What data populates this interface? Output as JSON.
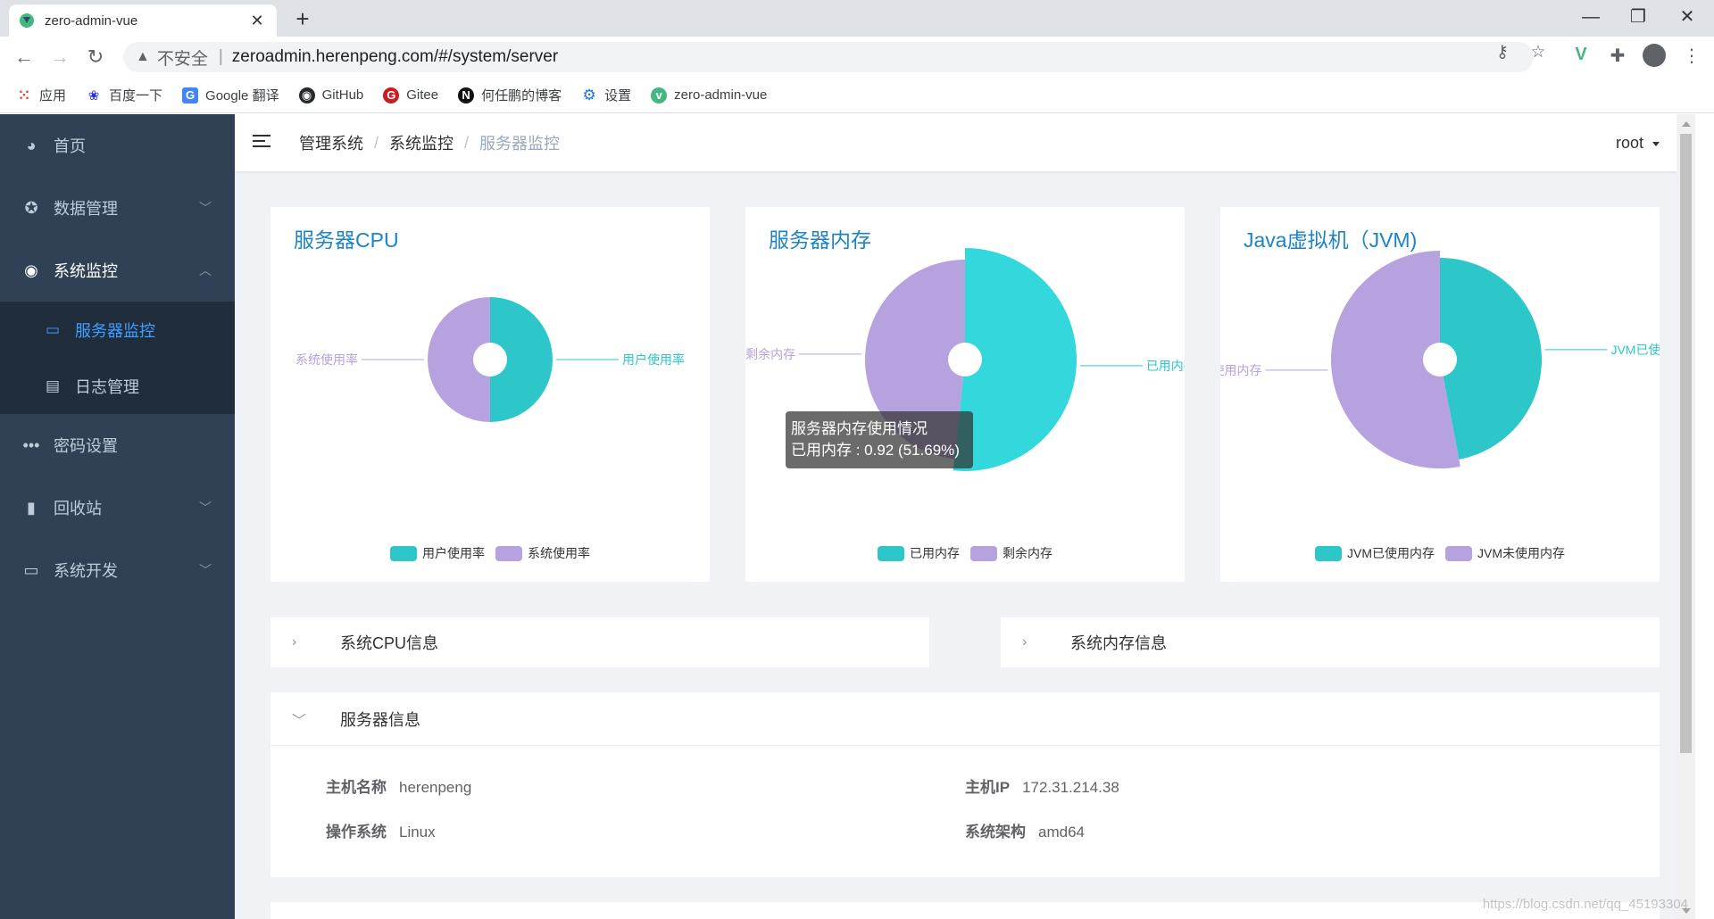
{
  "browser": {
    "tab_title": "zero-admin-vue",
    "tab_close": "✕",
    "new_tab": "+",
    "insecure_label": "不安全",
    "separator": "|",
    "url": "zeroadmin.herenpeng.com/#/system/server",
    "bookmarks": [
      {
        "label": "应用",
        "icon": "apps-grid-icon"
      },
      {
        "label": "百度一下",
        "icon": "baidu-paw-icon"
      },
      {
        "label": "Google 翻译",
        "icon": "google-translate-icon"
      },
      {
        "label": "GitHub",
        "icon": "github-icon"
      },
      {
        "label": "Gitee",
        "icon": "gitee-icon"
      },
      {
        "label": "何任鹏的博客",
        "icon": "notion-icon"
      },
      {
        "label": "设置",
        "icon": "gear-icon"
      },
      {
        "label": "zero-admin-vue",
        "icon": "vue-icon"
      }
    ]
  },
  "sidebar": {
    "items": [
      {
        "label": "首页",
        "icon": "dashboard-icon"
      },
      {
        "label": "数据管理",
        "icon": "data-icon",
        "expandable": true
      },
      {
        "label": "系统监控",
        "icon": "eye-icon",
        "expandable": true,
        "open": true,
        "children": [
          {
            "label": "服务器监控",
            "icon": "monitor-icon",
            "active": true
          },
          {
            "label": "日志管理",
            "icon": "document-icon"
          }
        ]
      },
      {
        "label": "密码设置",
        "icon": "more-dots-icon"
      },
      {
        "label": "回收站",
        "icon": "trash-icon",
        "expandable": true
      },
      {
        "label": "系统开发",
        "icon": "desktop-icon",
        "expandable": true
      }
    ]
  },
  "navbar": {
    "breadcrumb": [
      "管理系统",
      "系统监控",
      "服务器监控"
    ],
    "breadcrumb_sep": "/",
    "user": "root"
  },
  "colors": {
    "teal": "#2ec7c9",
    "purple": "#b6a2de",
    "title_blue": "#1c84c6",
    "sidebar": "#304156",
    "active": "#409eff"
  },
  "charts": [
    {
      "title": "服务器CPU",
      "chart_data": {
        "type": "pie",
        "series": [
          {
            "name": "用户使用率",
            "value": 50,
            "color": "#2ec7c9"
          },
          {
            "name": "系统使用率",
            "value": 50,
            "color": "#b6a2de"
          }
        ],
        "slice_labels": [
          "用户使用率",
          "系统使用率"
        ],
        "legend": "bottom-center"
      }
    },
    {
      "title": "服务器内存",
      "chart_data": {
        "type": "pie",
        "series": [
          {
            "name": "已用内存",
            "value": 0.92,
            "color": "#2ec7c9"
          },
          {
            "name": "剩余内存",
            "value": 0.86,
            "color": "#b6a2de"
          }
        ],
        "slice_labels": [
          "已用内存",
          "剩余内存"
        ],
        "legend": "bottom-center",
        "tooltip": {
          "title": "服务器内存使用情况",
          "line": "已用内存 : 0.92 (51.69%)"
        }
      }
    },
    {
      "title": "Java虚拟机（JVM)",
      "chart_data": {
        "type": "pie",
        "series": [
          {
            "name": "JVM已使用内存",
            "value": 47,
            "color": "#2ec7c9"
          },
          {
            "name": "JVM未使用内存",
            "value": 53,
            "color": "#b6a2de"
          }
        ],
        "slice_labels": [
          "JVM已使用",
          "未使用内存"
        ],
        "legend": "bottom-center"
      }
    }
  ],
  "panels": {
    "cpu_info": "系统CPU信息",
    "mem_info": "系统内存信息",
    "server_info": {
      "title": "服务器信息",
      "fields": [
        {
          "key": "主机名称",
          "value": "herenpeng"
        },
        {
          "key": "主机IP",
          "value": "172.31.214.38"
        },
        {
          "key": "操作系统",
          "value": "Linux"
        },
        {
          "key": "系统架构",
          "value": "amd64"
        }
      ]
    }
  },
  "watermark": "https://blog.csdn.net/qq_45193304"
}
